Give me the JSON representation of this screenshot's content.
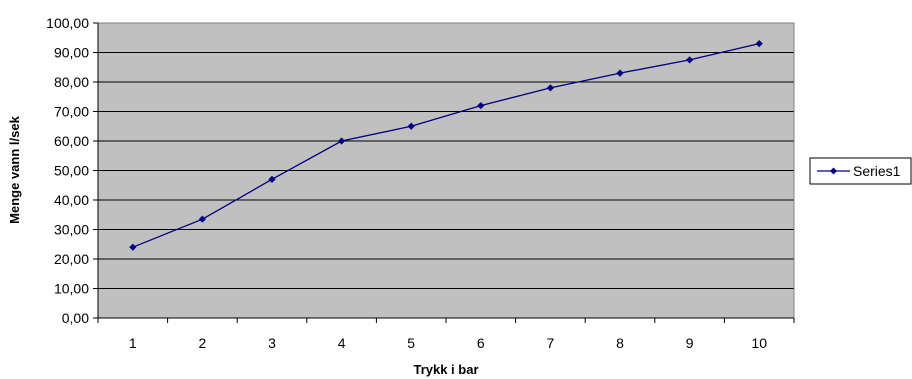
{
  "chart_data": {
    "type": "line",
    "title": "",
    "xlabel": "Trykk i bar",
    "ylabel": "Menge vann l/sek",
    "categories": [
      "1",
      "2",
      "3",
      "4",
      "5",
      "6",
      "7",
      "8",
      "9",
      "10"
    ],
    "ylim": [
      0,
      100
    ],
    "y_ticks": [
      "0,00",
      "10,00",
      "20,00",
      "30,00",
      "40,00",
      "50,00",
      "60,00",
      "70,00",
      "80,00",
      "90,00",
      "100,00"
    ],
    "grid": true,
    "legend_position": "right",
    "series": [
      {
        "name": "Series1",
        "values": [
          24.0,
          33.5,
          47.0,
          60.0,
          65.0,
          72.0,
          78.0,
          83.0,
          87.5,
          93.0
        ]
      }
    ],
    "colors": {
      "plot_background": "#c0c0c0",
      "series_line": "#000080",
      "grid": "#000000"
    }
  }
}
